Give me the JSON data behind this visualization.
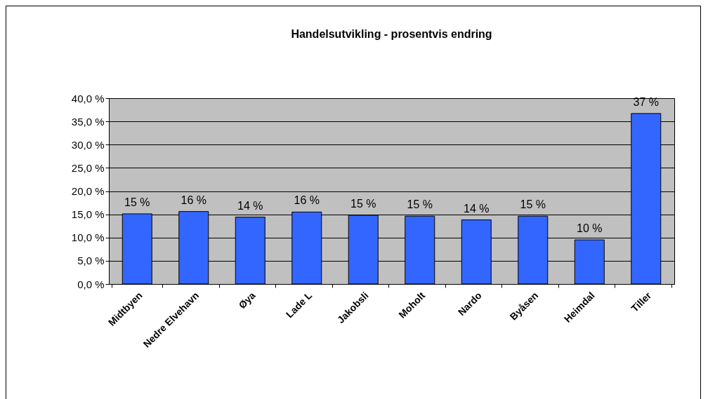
{
  "chart_data": {
    "type": "bar",
    "title": "Handelsutvikling - prosentvis endring",
    "categories": [
      "Midtbyen",
      "Nedre Elvehavn",
      "Øya",
      "Lade L",
      "Jakobsli",
      "Moholt",
      "Nardo",
      "Byåsen",
      "Heimdal",
      "Tiller"
    ],
    "values": [
      15.1,
      15.6,
      14.4,
      15.5,
      14.8,
      14.6,
      13.8,
      14.6,
      9.5,
      36.7
    ],
    "value_labels": [
      "15 %",
      "16 %",
      "14 %",
      "16 %",
      "15 %",
      "15 %",
      "14 %",
      "15 %",
      "10 %",
      "37 %"
    ],
    "color": "#3366ff",
    "ylim": [
      0,
      40
    ],
    "yticks": [
      {
        "value": 0,
        "label": "0,0 %"
      },
      {
        "value": 5,
        "label": "5,0 %"
      },
      {
        "value": 10,
        "label": "10,0 %"
      },
      {
        "value": 15,
        "label": "15,0 %"
      },
      {
        "value": 20,
        "label": "20,0 %"
      },
      {
        "value": 25,
        "label": "25,0 %"
      },
      {
        "value": 30,
        "label": "30,0 %"
      },
      {
        "value": 35,
        "label": "35,0 %"
      },
      {
        "value": 40,
        "label": "40,0 %"
      }
    ],
    "grid": "y"
  }
}
